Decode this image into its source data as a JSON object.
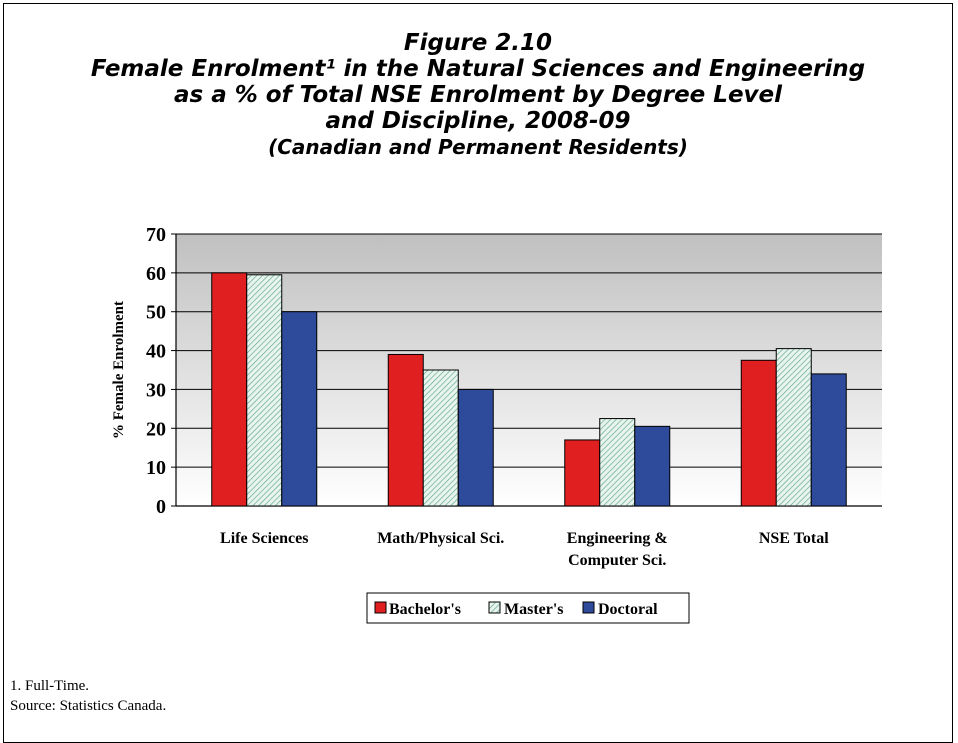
{
  "title": {
    "line1": "Figure 2.10",
    "line2": "Female Enrolment¹ in the Natural Sciences and Engineering",
    "line3": "as a % of Total NSE Enrolment by Degree Level",
    "line4": "and Discipline, 2008-09",
    "line5": "(Canadian and Permanent Residents)"
  },
  "chart_data": {
    "type": "bar",
    "categories": [
      [
        "Life Sciences"
      ],
      [
        "Math/Physical Sci."
      ],
      [
        "Engineering &",
        "Computer Sci."
      ],
      [
        "NSE Total"
      ]
    ],
    "series": [
      {
        "name": "Bachelor's",
        "values": [
          60,
          39,
          17,
          37.5
        ],
        "color": "#e02020",
        "pattern": "solid"
      },
      {
        "name": "Master's",
        "values": [
          59.5,
          35,
          22.5,
          40.5
        ],
        "color": "#cfe8e0",
        "pattern": "hatched"
      },
      {
        "name": "Doctoral",
        "values": [
          50,
          30,
          20.5,
          34
        ],
        "color": "#2e4a9a",
        "pattern": "solid"
      }
    ],
    "ylabel": "% Female Enrolment",
    "ylim": [
      0,
      70
    ],
    "yticks": [
      0,
      10,
      20,
      30,
      40,
      50,
      60,
      70
    ],
    "grid": true,
    "legend_position": "bottom"
  },
  "footnotes": {
    "note1": "1. Full-Time.",
    "source": "Source: Statistics Canada."
  }
}
